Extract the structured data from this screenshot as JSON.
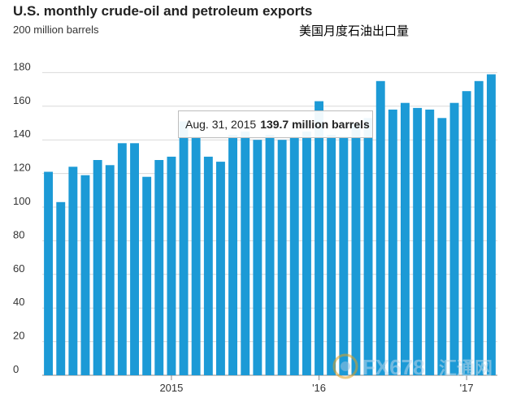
{
  "header": {
    "title": "U.S. monthly crude-oil and petroleum exports",
    "units": "200 million barrels",
    "cn_title": "美国月度石油出口量"
  },
  "tooltip": {
    "date": "Aug. 31, 2015",
    "value": "139.7 million barrels"
  },
  "watermark": {
    "text": "FX678",
    "cn_text": "汇通网"
  },
  "colors": {
    "bar": "#1c9ad6",
    "grid": "#d9d9d9",
    "baseline": "#888888"
  },
  "chart_data": {
    "type": "bar",
    "title": "U.S. monthly crude-oil and petroleum exports",
    "ylabel": "200 million barrels",
    "xlabel": "",
    "ylim": [
      0,
      200
    ],
    "yticks": [
      0,
      20,
      40,
      60,
      80,
      100,
      120,
      140,
      160,
      180
    ],
    "grid": true,
    "x_tick_labels": [
      {
        "label": "2015",
        "bar_index": 10
      },
      {
        "label": "'16",
        "bar_index": 22
      },
      {
        "label": "'17",
        "bar_index": 34
      }
    ],
    "values": [
      121,
      103,
      124,
      119,
      128,
      125,
      138,
      138,
      118,
      128,
      130,
      151,
      142,
      130,
      127,
      143,
      145,
      140,
      143,
      140,
      142,
      145,
      163,
      143,
      142,
      150,
      153,
      175,
      158,
      162,
      159,
      158,
      153,
      162,
      169,
      175,
      179
    ]
  }
}
